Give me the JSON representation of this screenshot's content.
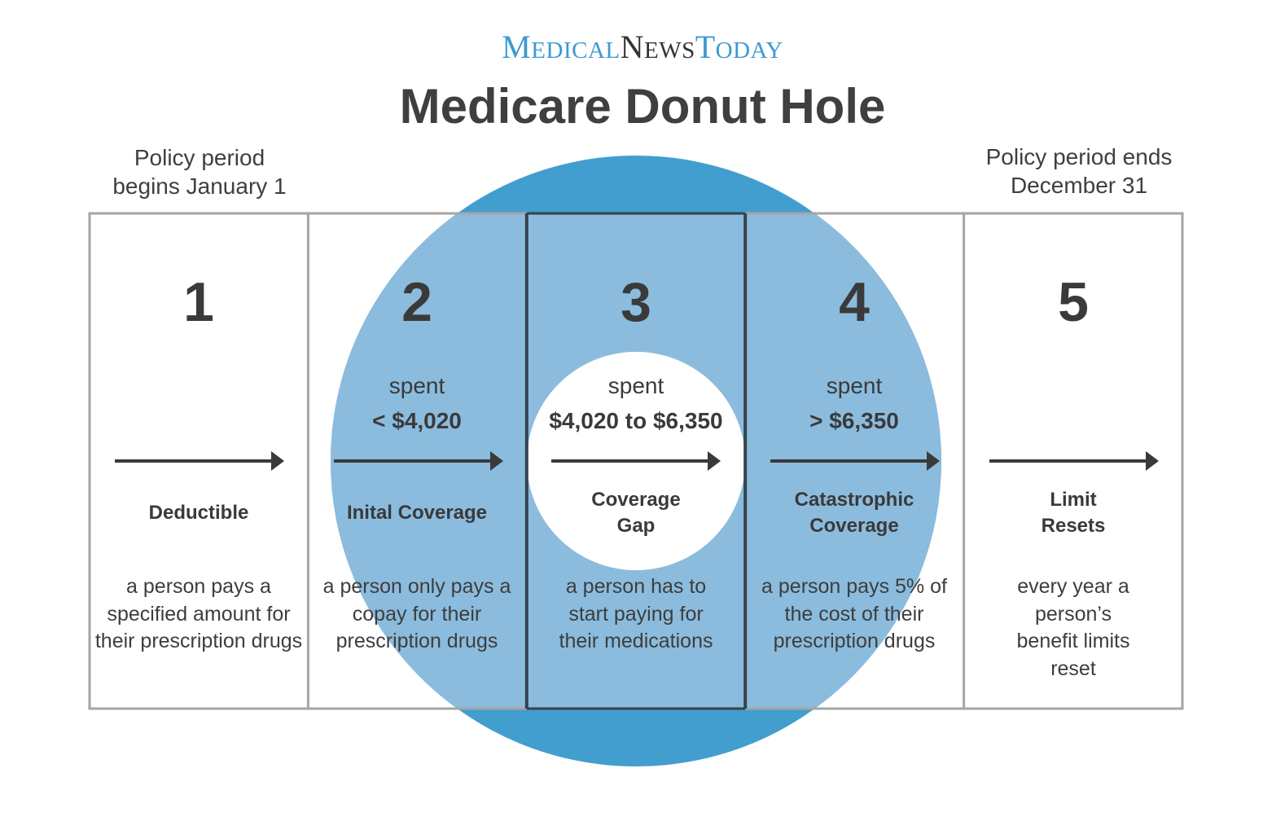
{
  "logo": {
    "m": "M",
    "edical": "EDICAL",
    "n": "N",
    "ews": "EWS",
    "t": "T",
    "oday": "ODAY"
  },
  "title": "Medicare Donut Hole",
  "period_start": {
    "line1": "Policy period",
    "line2": "begins January 1"
  },
  "period_end": {
    "line1": "Policy period ends",
    "line2": "December 31"
  },
  "stages": [
    {
      "number": "1",
      "spent_label": "",
      "spent_amount": "",
      "phase": "Deductible",
      "description": "a person pays a specified amount for their prescription drugs"
    },
    {
      "number": "2",
      "spent_label": "spent",
      "spent_amount": "< $4,020",
      "phase": "Inital Coverage",
      "description": "a person only pays a copay for their prescription drugs"
    },
    {
      "number": "3",
      "spent_label": "spent",
      "spent_amount": "$4,020 to $6,350",
      "phase": "Coverage Gap",
      "description": "a person has to start paying for their medications"
    },
    {
      "number": "4",
      "spent_label": "spent",
      "spent_amount": "> $6,350",
      "phase": "Catastrophic Coverage",
      "description": "a person pays 5% of the cost of their prescription drugs"
    },
    {
      "number": "5",
      "spent_label": "",
      "spent_amount": "",
      "phase": "Limit Resets",
      "description": "every year a person’s benefit limits reset"
    }
  ],
  "colors": {
    "donut_outer": "#429ecf",
    "donut_overlay": "#8bbcdd",
    "brand_blue": "#3b9ad2",
    "box_border": "#a5a5a5",
    "dark_divider": "#36414a",
    "arrow": "#3a3a3a"
  }
}
